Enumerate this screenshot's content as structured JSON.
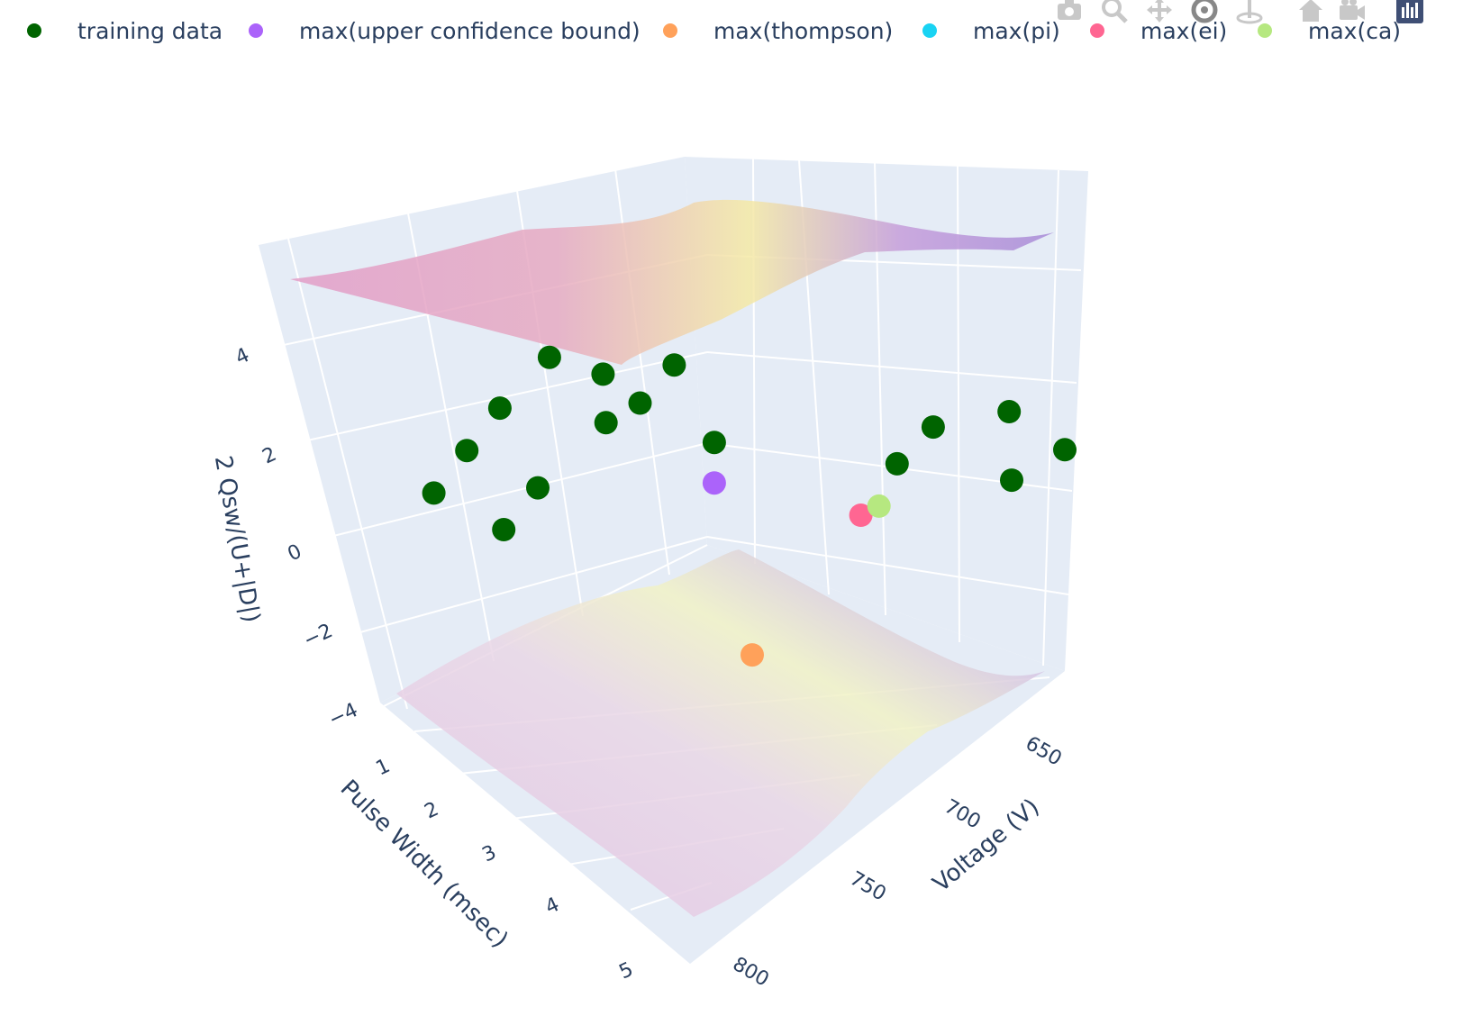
{
  "colors": {
    "axis_text": "#2a3f5f",
    "scene_bg_wall": "#e5ecf6",
    "grid": "#ffffff",
    "modebar_icon": "#c8c8c8",
    "modebar_active": "#2a3f5f"
  },
  "legend": [
    {
      "label": "training data",
      "color": "#006400"
    },
    {
      "label": "max(upper confidence bound)",
      "color": "#ab63fa"
    },
    {
      "label": "max(thompson)",
      "color": "#ffa15a"
    },
    {
      "label": "max(pi)",
      "color": "#19d3f3"
    },
    {
      "label": "max(ei)",
      "color": "#ff6692"
    },
    {
      "label": "max(ca)",
      "color": "#b6e880"
    }
  ],
  "modebar": [
    {
      "name": "camera-icon"
    },
    {
      "name": "zoom-icon"
    },
    {
      "name": "pan-icon"
    },
    {
      "name": "orbit-rotation-icon"
    },
    {
      "name": "turntable-rotation-icon"
    },
    {
      "name": "reset-camera-home-icon"
    },
    {
      "name": "reset-camera-last-save-icon"
    },
    {
      "name": "plotly-logo-icon"
    }
  ],
  "chart_data": {
    "type": "scatter3d",
    "x_axis": {
      "title": "Voltage (V)",
      "range": [
        620,
        820
      ],
      "ticks": [
        650,
        700,
        750,
        800
      ],
      "tick_labels": [
        "650",
        "700",
        "750",
        "800"
      ]
    },
    "y_axis": {
      "title": "Pulse Width (msec)",
      "range": [
        0.7,
        5.2
      ],
      "ticks": [
        1,
        2,
        3,
        4,
        5
      ],
      "tick_labels": [
        "1",
        "2",
        "3",
        "4",
        "5"
      ]
    },
    "z_axis": {
      "title": "2 Qsw/(U+|D|)",
      "range": [
        -4.5,
        6
      ],
      "ticks": [
        -4,
        -2,
        0,
        2,
        4
      ],
      "tick_labels": [
        "−4",
        "−2",
        "0",
        "2",
        "4"
      ]
    },
    "grid": true,
    "legend_position": "top, horizontal",
    "series": [
      {
        "name": "training data",
        "color": "#006400",
        "points": [
          {
            "x": 800,
            "y": 1.0,
            "z": 1.2
          },
          {
            "x": 780,
            "y": 1.0,
            "z": 1.9
          },
          {
            "x": 800,
            "y": 2.0,
            "z": 1.7
          },
          {
            "x": 760,
            "y": 1.0,
            "z": 2.6
          },
          {
            "x": 780,
            "y": 2.0,
            "z": 2.3
          },
          {
            "x": 730,
            "y": 1.0,
            "z": 3.3
          },
          {
            "x": 740,
            "y": 2.0,
            "z": 3.0
          },
          {
            "x": 720,
            "y": 1.5,
            "z": 3.2
          },
          {
            "x": 720,
            "y": 2.0,
            "z": 3.0
          },
          {
            "x": 720,
            "y": 3.0,
            "z": 3.1
          },
          {
            "x": 700,
            "y": 2.0,
            "z": 3.5
          },
          {
            "x": 660,
            "y": 4.0,
            "z": 1.6
          },
          {
            "x": 640,
            "y": 4.0,
            "z": 1.9
          },
          {
            "x": 620,
            "y": 4.5,
            "z": 2.0
          },
          {
            "x": 640,
            "y": 5.0,
            "z": 1.3
          },
          {
            "x": 620,
            "y": 5.2,
            "z": 1.5
          }
        ]
      },
      {
        "name": "max(upper confidence bound)",
        "color": "#ab63fa",
        "points": [
          {
            "x": 720,
            "y": 3.0,
            "z": 2.0
          }
        ]
      },
      {
        "name": "max(thompson)",
        "color": "#ffa15a",
        "points": [
          {
            "x": 740,
            "y": 4.0,
            "z": -0.8
          }
        ]
      },
      {
        "name": "max(pi)",
        "color": "#19d3f3",
        "points": []
      },
      {
        "name": "max(ei)",
        "color": "#ff6692",
        "points": [
          {
            "x": 680,
            "y": 4.0,
            "z": 0.9
          }
        ]
      },
      {
        "name": "max(ca)",
        "color": "#b6e880",
        "points": [
          {
            "x": 670,
            "y": 4.0,
            "z": 0.8
          }
        ]
      }
    ],
    "surfaces": [
      {
        "name": "upper confidence surface",
        "colorscale": "plasma-like (pink → yellow → violet)",
        "opacity": 0.6,
        "z_level": 5.2
      },
      {
        "name": "lower confidence surface",
        "colorscale": "plasma-like (pink → yellow → violet)",
        "opacity": 0.3,
        "z_level": -4.0
      }
    ]
  }
}
